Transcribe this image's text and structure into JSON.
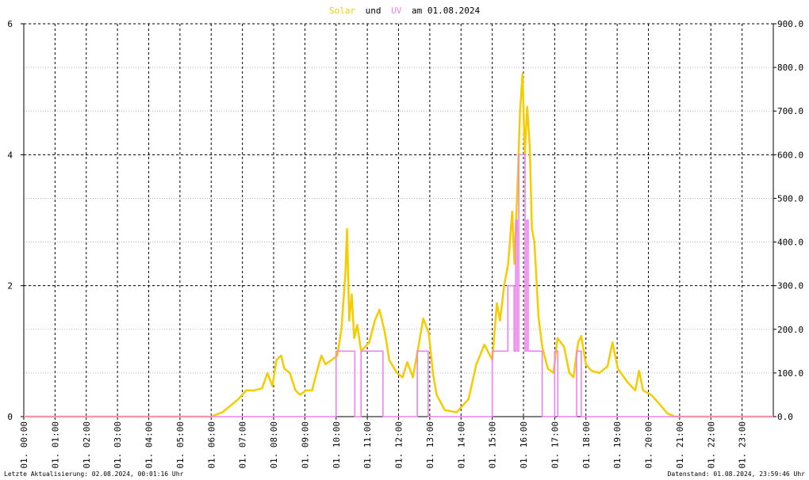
{
  "chart_data": {
    "type": "line",
    "title_connector": "und",
    "title_suffix": "am 01.08.2024",
    "footer_left": "Letzte Aktualisierung: 02.08.2024, 00:01:16 Uhr",
    "footer_right": "Datenstand: 01.08.2024, 23:59:46 Uhr",
    "xlim": [
      0,
      24
    ],
    "xticks": [
      {
        "value": 0,
        "label": "01. 00:00"
      },
      {
        "value": 1,
        "label": "01. 01:00"
      },
      {
        "value": 2,
        "label": "01. 02:00"
      },
      {
        "value": 3,
        "label": "01. 03:00"
      },
      {
        "value": 4,
        "label": "01. 04:00"
      },
      {
        "value": 5,
        "label": "01. 05:00"
      },
      {
        "value": 6,
        "label": "01. 06:00"
      },
      {
        "value": 7,
        "label": "01. 07:00"
      },
      {
        "value": 8,
        "label": "01. 08:00"
      },
      {
        "value": 9,
        "label": "01. 09:00"
      },
      {
        "value": 10,
        "label": "01. 10:00"
      },
      {
        "value": 11,
        "label": "01. 11:00"
      },
      {
        "value": 12,
        "label": "01. 12:00"
      },
      {
        "value": 13,
        "label": "01. 13:00"
      },
      {
        "value": 14,
        "label": "01. 14:00"
      },
      {
        "value": 15,
        "label": "01. 15:00"
      },
      {
        "value": 16,
        "label": "01. 16:00"
      },
      {
        "value": 17,
        "label": "01. 17:00"
      },
      {
        "value": 18,
        "label": "01. 18:00"
      },
      {
        "value": 19,
        "label": "01. 19:00"
      },
      {
        "value": 20,
        "label": "01. 20:00"
      },
      {
        "value": 21,
        "label": "01. 21:00"
      },
      {
        "value": 22,
        "label": "01. 22:00"
      },
      {
        "value": 23,
        "label": "01. 23:00"
      }
    ],
    "ylim": [
      0,
      6
    ],
    "yticks": [
      0,
      2,
      4,
      6
    ],
    "y2lim": [
      0,
      900
    ],
    "y2ticks": [
      {
        "value": 0,
        "label": "0.0"
      },
      {
        "value": 100,
        "label": "100.0"
      },
      {
        "value": 200,
        "label": "200.0"
      },
      {
        "value": 300,
        "label": "300.0"
      },
      {
        "value": 400,
        "label": "400.0"
      },
      {
        "value": 500,
        "label": "500.0"
      },
      {
        "value": 600,
        "label": "600.0"
      },
      {
        "value": 700,
        "label": "700.0"
      },
      {
        "value": 800,
        "label": "800.0"
      },
      {
        "value": 900,
        "label": "900.0"
      }
    ],
    "grid": true,
    "series": [
      {
        "name": "Solar",
        "color": "#f5cc00",
        "axis": "y2",
        "x": [
          0,
          5.98,
          6.36,
          6.87,
          7.12,
          7.37,
          7.63,
          7.8,
          7.96,
          8.09,
          8.24,
          8.34,
          8.52,
          8.7,
          8.85,
          9.03,
          9.23,
          9.41,
          9.53,
          9.66,
          9.86,
          10.04,
          10.17,
          10.3,
          10.35,
          10.42,
          10.5,
          10.58,
          10.68,
          10.8,
          11.06,
          11.24,
          11.39,
          11.57,
          11.7,
          11.95,
          12.13,
          12.28,
          12.46,
          12.61,
          12.79,
          12.97,
          13.1,
          13.22,
          13.48,
          13.86,
          14.24,
          14.49,
          14.75,
          15.0,
          15.15,
          15.25,
          15.38,
          15.51,
          15.64,
          15.71,
          15.82,
          15.89,
          15.97,
          16.04,
          16.12,
          16.2,
          16.27,
          16.35,
          16.48,
          16.6,
          16.78,
          16.96,
          17.09,
          17.3,
          17.47,
          17.6,
          17.75,
          17.85,
          18.0,
          18.18,
          18.43,
          18.69,
          18.85,
          19.02,
          19.32,
          19.58,
          19.7,
          19.83,
          20.09,
          20.34,
          20.6,
          20.85,
          24
        ],
        "values": [
          0,
          0,
          10,
          40,
          60,
          60,
          65,
          100,
          70,
          130,
          140,
          110,
          100,
          60,
          50,
          60,
          60,
          110,
          140,
          120,
          130,
          140,
          200,
          330,
          430,
          220,
          280,
          180,
          210,
          150,
          170,
          220,
          245,
          190,
          130,
          100,
          90,
          125,
          90,
          150,
          225,
          190,
          100,
          50,
          15,
          10,
          40,
          120,
          165,
          130,
          260,
          220,
          300,
          350,
          470,
          350,
          550,
          700,
          785,
          600,
          710,
          620,
          430,
          400,
          230,
          160,
          110,
          100,
          180,
          160,
          100,
          90,
          170,
          185,
          120,
          105,
          100,
          115,
          170,
          110,
          80,
          60,
          105,
          60,
          50,
          30,
          8,
          0,
          0
        ]
      },
      {
        "name": "UV",
        "color": "#ee82ee",
        "axis": "y",
        "x": [
          0,
          10.0,
          10.0,
          10.6,
          10.6,
          10.8,
          10.8,
          11.5,
          11.5,
          12.6,
          12.6,
          12.95,
          12.95,
          15.0,
          15.0,
          15.5,
          15.5,
          15.7,
          15.7,
          15.75,
          15.75,
          15.8,
          15.8,
          15.85,
          15.85,
          16.05,
          16.05,
          16.1,
          16.1,
          16.15,
          16.15,
          16.3,
          16.3,
          16.6,
          16.6,
          17.0,
          17.0,
          17.1,
          17.1,
          17.7,
          17.7,
          17.85,
          17.85,
          24
        ],
        "values": [
          0,
          0,
          1,
          1,
          0,
          0,
          1,
          1,
          0,
          0,
          1,
          1,
          0,
          0,
          1,
          1,
          2,
          2,
          1,
          1,
          3,
          3,
          1,
          1,
          4,
          4,
          1,
          1,
          3,
          3,
          1,
          1,
          1,
          1,
          0,
          0,
          1,
          1,
          0,
          0,
          1,
          1,
          0,
          0
        ]
      }
    ]
  }
}
